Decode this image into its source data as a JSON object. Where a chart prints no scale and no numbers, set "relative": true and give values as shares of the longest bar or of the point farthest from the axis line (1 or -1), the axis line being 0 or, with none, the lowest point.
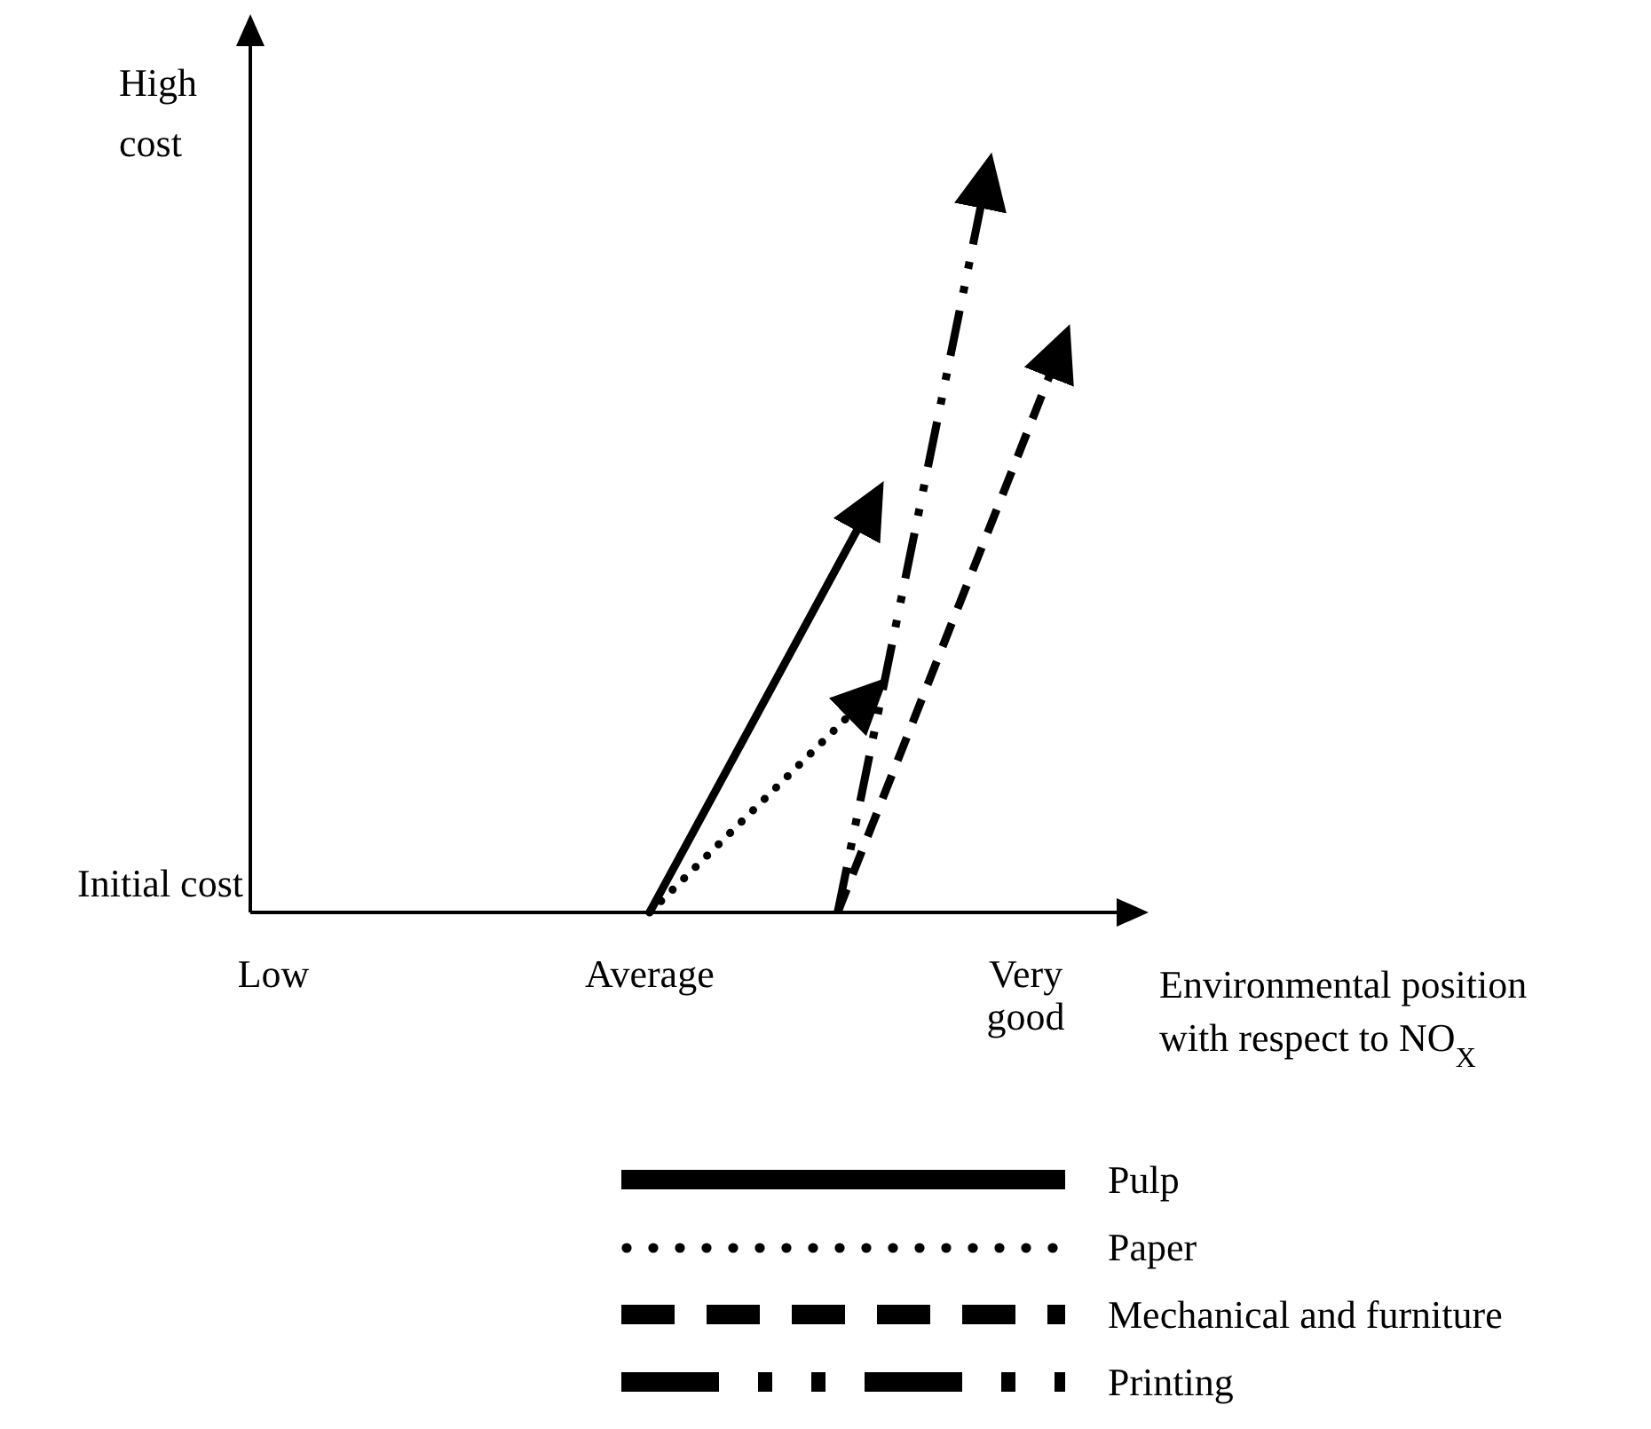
{
  "chart_data": {
    "type": "line",
    "relative": true,
    "xlabel": "Environmental position with respect to NO$_{X}$",
    "ylabel": "High\ncost",
    "annotations": [
      "Initial cost"
    ],
    "categories": [
      "Low",
      null,
      null,
      null,
      null,
      null,
      null,
      null,
      null,
      null,
      "Average",
      null,
      null,
      null,
      null,
      null,
      null,
      null,
      null,
      null,
      "Very\ngood",
      null
    ],
    "grid": false,
    "legend": "bottom",
    "series": [
      {
        "name": "Pulp",
        "color": "#000000",
        "line_style": "solid",
        "values": [
          null,
          null,
          null,
          null,
          null,
          null,
          null,
          null,
          null,
          null,
          0,
          null,
          null,
          null,
          null,
          null,
          0.56,
          null,
          null,
          null,
          null,
          null
        ]
      },
      {
        "name": "Paper",
        "color": "#000000",
        "line_style": "dotted",
        "values": [
          null,
          null,
          null,
          null,
          null,
          null,
          null,
          null,
          null,
          null,
          0,
          null,
          null,
          null,
          null,
          null,
          0.3,
          null,
          null,
          null,
          null,
          null
        ]
      },
      {
        "name": "Mechanical and furniture",
        "color": "#000000",
        "line_style": "dashed",
        "values": [
          null,
          null,
          null,
          null,
          null,
          null,
          null,
          null,
          null,
          null,
          null,
          null,
          null,
          null,
          null,
          0,
          null,
          null,
          null,
          null,
          null,
          0.77
        ]
      },
      {
        "name": "Printing",
        "color": "#000000",
        "line_style": "dashdotdot",
        "values": [
          null,
          null,
          null,
          null,
          null,
          null,
          null,
          null,
          null,
          null,
          null,
          null,
          null,
          null,
          null,
          0,
          null,
          null,
          null,
          1,
          null,
          null
        ]
      }
    ]
  }
}
